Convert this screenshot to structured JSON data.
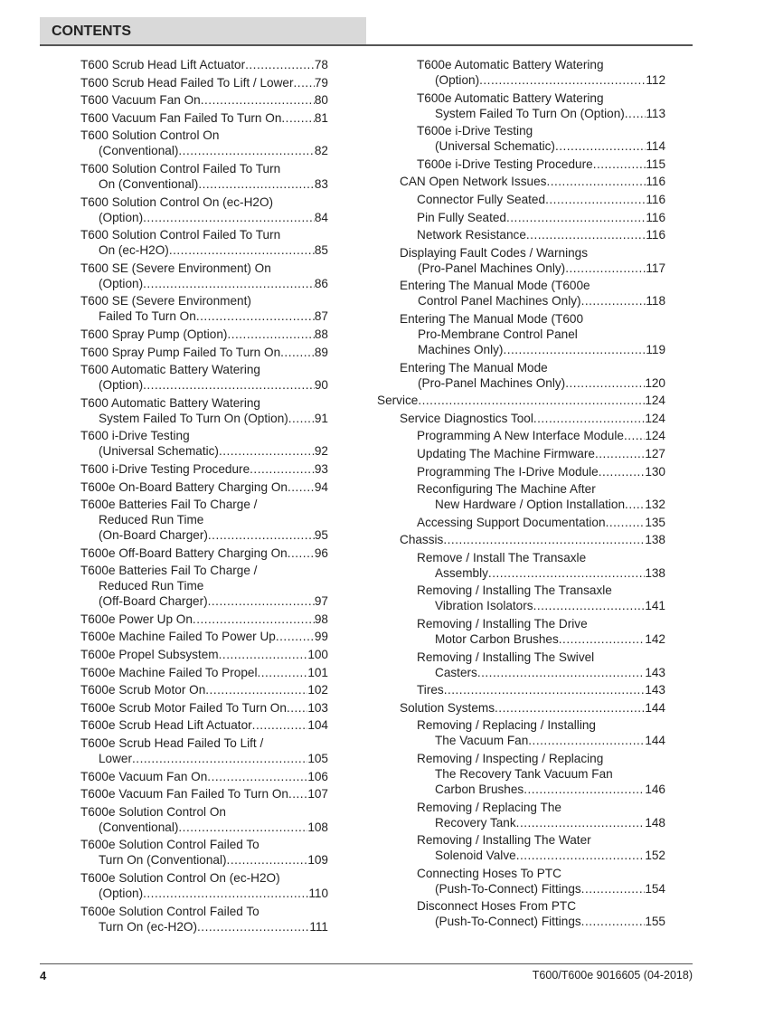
{
  "header": {
    "title": "CONTENTS"
  },
  "left_column": [
    {
      "level": 1,
      "lines": [
        "T600 Scrub Head Lift Actuator"
      ],
      "page": "78"
    },
    {
      "level": 1,
      "lines": [
        "T600 Scrub Head Failed To Lift / Lower"
      ],
      "page": "79"
    },
    {
      "level": 1,
      "lines": [
        "T600 Vacuum Fan On"
      ],
      "page": "80"
    },
    {
      "level": 1,
      "lines": [
        "T600 Vacuum Fan Failed To Turn On"
      ],
      "page": "81"
    },
    {
      "level": 1,
      "lines": [
        "T600 Solution Control On",
        "(Conventional)"
      ],
      "page": "82"
    },
    {
      "level": 1,
      "lines": [
        "T600 Solution Control Failed To Turn",
        "On (Conventional)"
      ],
      "page": "83"
    },
    {
      "level": 1,
      "lines": [
        "T600 Solution Control On (ec-H2O)",
        "(Option)"
      ],
      "page": "84"
    },
    {
      "level": 1,
      "lines": [
        "T600 Solution Control Failed To Turn",
        "On (ec-H2O)"
      ],
      "page": "85"
    },
    {
      "level": 1,
      "lines": [
        "T600 SE (Severe Environment) On",
        "(Option)"
      ],
      "page": "86"
    },
    {
      "level": 1,
      "lines": [
        "T600 SE (Severe Environment)",
        "Failed To Turn On"
      ],
      "page": "87"
    },
    {
      "level": 1,
      "lines": [
        "T600 Spray Pump (Option)"
      ],
      "page": "88"
    },
    {
      "level": 1,
      "lines": [
        "T600 Spray Pump Failed To Turn On"
      ],
      "page": "89"
    },
    {
      "level": 1,
      "lines": [
        "T600 Automatic Battery Watering",
        "(Option)"
      ],
      "page": "90"
    },
    {
      "level": 1,
      "lines": [
        "T600 Automatic Battery Watering",
        "System Failed To Turn On (Option)"
      ],
      "page": "91"
    },
    {
      "level": 1,
      "lines": [
        "T600 i-Drive Testing",
        "(Universal Schematic)"
      ],
      "page": "92"
    },
    {
      "level": 1,
      "lines": [
        "T600 i-Drive Testing Procedure"
      ],
      "page": "93"
    },
    {
      "level": 1,
      "lines": [
        "T600e On-Board Battery Charging On"
      ],
      "page": "94"
    },
    {
      "level": 1,
      "lines": [
        "T600e Batteries Fail To Charge /",
        "Reduced Run Time",
        "(On-Board Charger)"
      ],
      "page": "95"
    },
    {
      "level": 1,
      "lines": [
        "T600e Off-Board Battery Charging On"
      ],
      "page": "96"
    },
    {
      "level": 1,
      "lines": [
        "T600e Batteries Fail To Charge /",
        "Reduced Run Time",
        "(Off-Board Charger)"
      ],
      "page": "97"
    },
    {
      "level": 1,
      "lines": [
        "T600e Power Up On"
      ],
      "page": "98"
    },
    {
      "level": 1,
      "lines": [
        "T600e Machine Failed To Power Up"
      ],
      "page": "99"
    },
    {
      "level": 1,
      "lines": [
        "T600e Propel Subsystem"
      ],
      "page": "100"
    },
    {
      "level": 1,
      "lines": [
        "T600e Machine Failed To Propel"
      ],
      "page": "101"
    },
    {
      "level": 1,
      "lines": [
        "T600e Scrub Motor On"
      ],
      "page": "102"
    },
    {
      "level": 1,
      "lines": [
        "T600e Scrub Motor Failed To Turn On"
      ],
      "page": "103"
    },
    {
      "level": 1,
      "lines": [
        "T600e Scrub Head Lift Actuator"
      ],
      "page": "104"
    },
    {
      "level": 1,
      "lines": [
        "T600e Scrub Head Failed To Lift /",
        "Lower"
      ],
      "page": "105"
    },
    {
      "level": 1,
      "lines": [
        "T600e Vacuum Fan On"
      ],
      "page": "106"
    },
    {
      "level": 1,
      "lines": [
        "T600e Vacuum Fan Failed To Turn On"
      ],
      "page": "107"
    },
    {
      "level": 1,
      "lines": [
        "T600e Solution Control On",
        "(Conventional)"
      ],
      "page": "108"
    },
    {
      "level": 1,
      "lines": [
        "T600e Solution Control Failed To",
        "Turn On (Conventional)"
      ],
      "page": "109"
    },
    {
      "level": 1,
      "lines": [
        "T600e Solution Control On (ec-H2O)",
        "(Option)"
      ],
      "page": "110"
    },
    {
      "level": 1,
      "lines": [
        "T600e Solution Control Failed To",
        "Turn On (ec-H2O)"
      ],
      "page": "111"
    }
  ],
  "right_column": [
    {
      "level": 2,
      "lines": [
        "T600e Automatic Battery Watering",
        "(Option)"
      ],
      "page": "112"
    },
    {
      "level": 2,
      "lines": [
        "T600e Automatic Battery Watering",
        "System Failed To Turn On (Option)"
      ],
      "page": "113"
    },
    {
      "level": 2,
      "lines": [
        "T600e i-Drive Testing",
        "(Universal Schematic)"
      ],
      "page": "114"
    },
    {
      "level": 2,
      "lines": [
        "T600e i-Drive Testing Procedure"
      ],
      "page": "115"
    },
    {
      "level": 1,
      "lines": [
        "CAN Open Network Issues"
      ],
      "page": "116"
    },
    {
      "level": 2,
      "lines": [
        "Connector Fully Seated"
      ],
      "page": "116"
    },
    {
      "level": 2,
      "lines": [
        "Pin Fully Seated"
      ],
      "page": "116"
    },
    {
      "level": 2,
      "lines": [
        "Network Resistance"
      ],
      "page": "116"
    },
    {
      "level": 1,
      "lines": [
        "Displaying Fault Codes / Warnings",
        "(Pro-Panel Machines Only)"
      ],
      "page": "117"
    },
    {
      "level": 1,
      "lines": [
        "Entering The Manual Mode (T600e",
        "Control Panel Machines Only)"
      ],
      "page": "118"
    },
    {
      "level": 1,
      "lines": [
        "Entering The Manual Mode (T600",
        "Pro-Membrane Control Panel",
        "Machines Only)"
      ],
      "page": "119"
    },
    {
      "level": 1,
      "lines": [
        "Entering The Manual Mode",
        "(Pro-Panel Machines Only)"
      ],
      "page": "120"
    },
    {
      "level": 0,
      "lines": [
        "Service"
      ],
      "page": "124"
    },
    {
      "level": 1,
      "lines": [
        "Service Diagnostics Tool"
      ],
      "page": "124"
    },
    {
      "level": 2,
      "lines": [
        "Programming A New Interface Module"
      ],
      "page": "124"
    },
    {
      "level": 2,
      "lines": [
        "Updating The Machine Firmware"
      ],
      "page": "127"
    },
    {
      "level": 2,
      "lines": [
        "Programming The I-Drive Module"
      ],
      "page": "130"
    },
    {
      "level": 2,
      "lines": [
        "Reconfiguring The Machine After",
        "New Hardware / Option Installation"
      ],
      "page": "132"
    },
    {
      "level": 2,
      "lines": [
        "Accessing Support Documentation"
      ],
      "page": "135"
    },
    {
      "level": 1,
      "lines": [
        "Chassis"
      ],
      "page": "138"
    },
    {
      "level": 2,
      "lines": [
        "Remove / Install The Transaxle",
        "Assembly"
      ],
      "page": "138"
    },
    {
      "level": 2,
      "lines": [
        "Removing / Installing The Transaxle",
        "Vibration Isolators"
      ],
      "page": "141"
    },
    {
      "level": 2,
      "lines": [
        "Removing / Installing The Drive",
        "Motor Carbon Brushes"
      ],
      "page": "142"
    },
    {
      "level": 2,
      "lines": [
        "Removing / Installing The Swivel",
        "Casters"
      ],
      "page": "143"
    },
    {
      "level": 2,
      "lines": [
        "Tires"
      ],
      "page": "143"
    },
    {
      "level": 1,
      "lines": [
        "Solution Systems"
      ],
      "page": "144"
    },
    {
      "level": 2,
      "lines": [
        "Removing / Replacing / Installing",
        "The Vacuum Fan"
      ],
      "page": "144"
    },
    {
      "level": 2,
      "lines": [
        "Removing / Inspecting / Replacing",
        "The Recovery Tank Vacuum Fan",
        "Carbon Brushes"
      ],
      "page": "146"
    },
    {
      "level": 2,
      "lines": [
        "Removing / Replacing The",
        "Recovery Tank"
      ],
      "page": "148"
    },
    {
      "level": 2,
      "lines": [
        "Removing / Installing The Water",
        "Solenoid Valve"
      ],
      "page": "152"
    },
    {
      "level": 2,
      "lines": [
        "Connecting Hoses To PTC",
        "(Push-To-Connect) Fittings"
      ],
      "page": "154"
    },
    {
      "level": 2,
      "lines": [
        "Disconnect Hoses From PTC",
        "(Push-To-Connect) Fittings"
      ],
      "page": "155"
    }
  ],
  "footer": {
    "page_number": "4",
    "document_id": "T600/T600e 9016605 (04-2018)"
  }
}
